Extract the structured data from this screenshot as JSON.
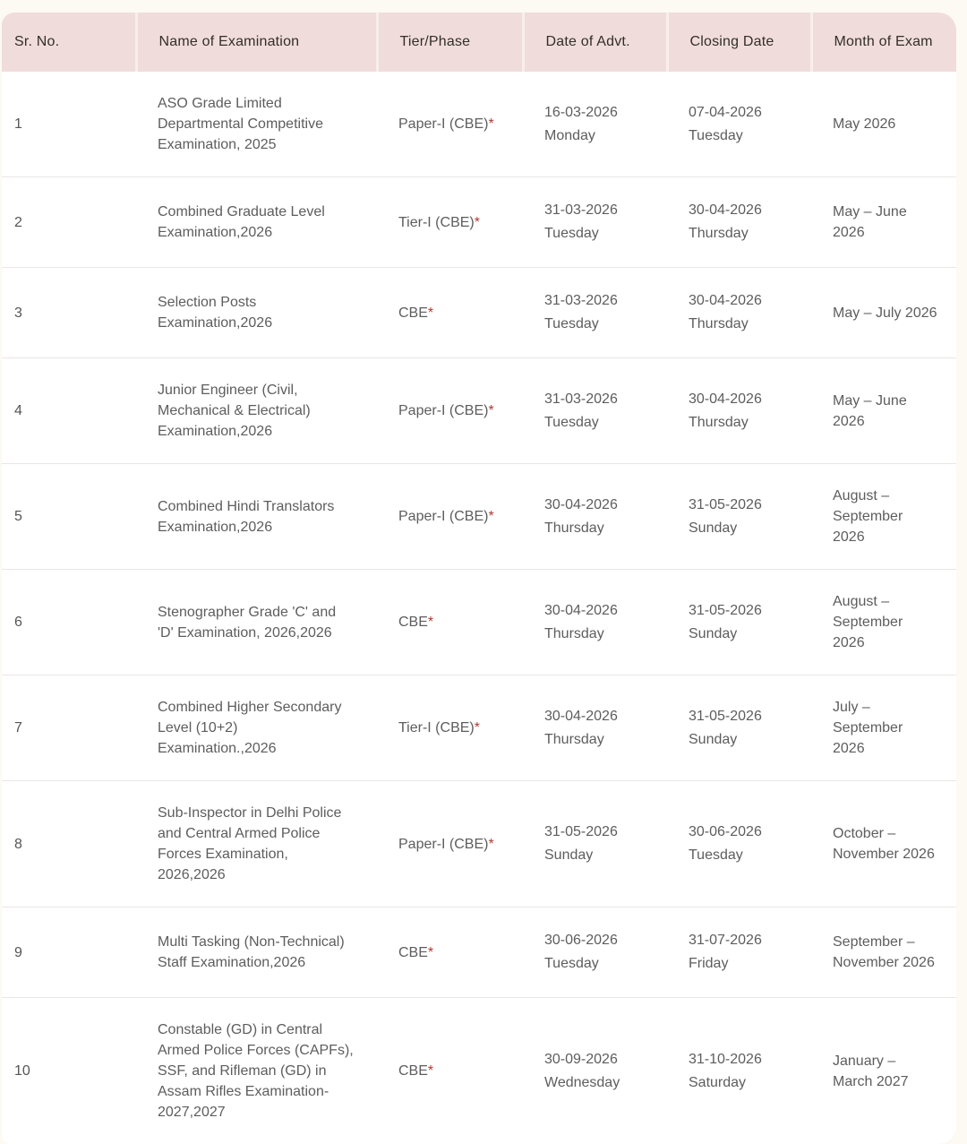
{
  "page": {
    "background_color": "#fdf9f3",
    "card_color": "#ffffff"
  },
  "table": {
    "header_bg_color": "#f0dddb",
    "header_text_color": "#332e2a",
    "body_text_color": "#5d5d5d",
    "asterisk_color": "#b23a32",
    "row_divider_color": "#e9e7e4",
    "columns": [
      "Sr. No.",
      "Name of Examination",
      "Tier/Phase",
      "Date of Advt.",
      "Closing Date",
      "Month of Exam"
    ],
    "rows": [
      {
        "sr": "1",
        "name": "ASO Grade Limited Departmental Competitive Examination, 2025",
        "tier": "Paper-I (CBE)",
        "tier_note": "*",
        "advt_date": "16-03-2026",
        "advt_day": "Monday",
        "closing_date": "07-04-2026",
        "closing_day": "Tuesday",
        "month": "May 2026"
      },
      {
        "sr": "2",
        "name": "Combined Graduate Level Examination,2026",
        "tier": "Tier-I (CBE)",
        "tier_note": "*",
        "advt_date": "31-03-2026",
        "advt_day": "Tuesday",
        "closing_date": "30-04-2026",
        "closing_day": "Thursday",
        "month": "May – June\n2026"
      },
      {
        "sr": "3",
        "name": "Selection Posts Examination,2026",
        "tier": "CBE",
        "tier_note": "*",
        "advt_date": "31-03-2026",
        "advt_day": "Tuesday",
        "closing_date": "30-04-2026",
        "closing_day": "Thursday",
        "month": "May – July 2026"
      },
      {
        "sr": "4",
        "name": "Junior Engineer (Civil, Mechanical & Electrical) Examination,2026",
        "tier": "Paper-I (CBE)",
        "tier_note": "*",
        "advt_date": "31-03-2026",
        "advt_day": "Tuesday",
        "closing_date": "30-04-2026",
        "closing_day": "Thursday",
        "month": "May – June\n2026"
      },
      {
        "sr": "5",
        "name": "Combined Hindi Translators Examination,2026",
        "tier": "Paper-I (CBE)",
        "tier_note": "*",
        "advt_date": "30-04-2026",
        "advt_day": "Thursday",
        "closing_date": "31-05-2026",
        "closing_day": "Sunday",
        "month": "August –\nSeptember\n2026"
      },
      {
        "sr": "6",
        "name": "Stenographer Grade 'C' and 'D' Examination, 2026,2026",
        "tier": "CBE",
        "tier_note": "*",
        "advt_date": "30-04-2026",
        "advt_day": "Thursday",
        "closing_date": "31-05-2026",
        "closing_day": "Sunday",
        "month": "August –\nSeptember\n2026"
      },
      {
        "sr": "7",
        "name": "Combined Higher Secondary Level (10+2) Examination.,2026",
        "tier": "Tier-I (CBE)",
        "tier_note": "*",
        "advt_date": "30-04-2026",
        "advt_day": "Thursday",
        "closing_date": "31-05-2026",
        "closing_day": "Sunday",
        "month": "July –\nSeptember\n2026"
      },
      {
        "sr": "8",
        "name": "Sub-Inspector in Delhi Police and Central Armed Police Forces Examination, 2026,2026",
        "tier": "Paper-I (CBE)",
        "tier_note": "*",
        "advt_date": "31-05-2026",
        "advt_day": "Sunday",
        "closing_date": "30-06-2026",
        "closing_day": "Tuesday",
        "month": "October –\nNovember 2026"
      },
      {
        "sr": "9",
        "name": "Multi Tasking (Non-Technical) Staff Examination,2026",
        "tier": "CBE",
        "tier_note": "*",
        "advt_date": "30-06-2026",
        "advt_day": "Tuesday",
        "closing_date": "31-07-2026",
        "closing_day": "Friday",
        "month": "September –\nNovember 2026"
      },
      {
        "sr": "10",
        "name": "Constable (GD) in Central Armed Police Forces (CAPFs), SSF, and Rifleman (GD) in Assam Rifles Examination-2027,2027",
        "tier": "CBE",
        "tier_note": "*",
        "advt_date": "30-09-2026",
        "advt_day": "Wednesday",
        "closing_date": "31-10-2026",
        "closing_day": "Saturday",
        "month": "January –\nMarch 2027"
      }
    ]
  }
}
